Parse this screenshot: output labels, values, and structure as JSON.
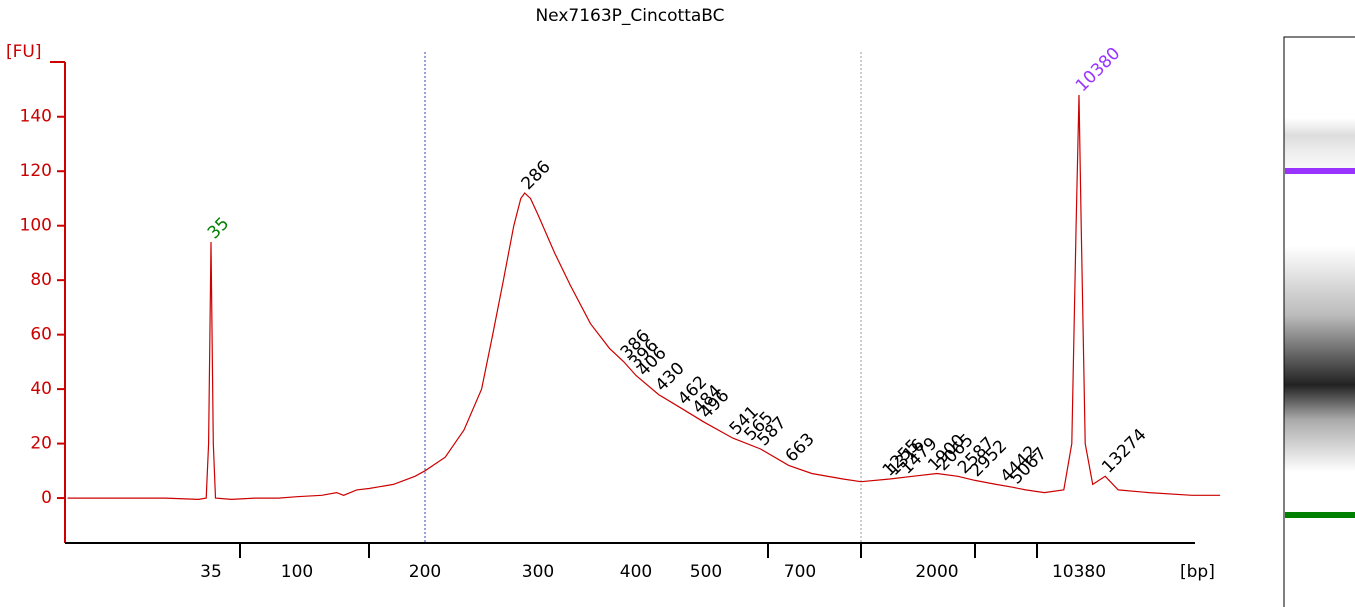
{
  "chart_data": {
    "type": "line",
    "title": "Nex7163P_CincottaBC",
    "ylabel": "[FU]",
    "xlabel": "[bp]",
    "color": "#cc0000",
    "log_x": true,
    "x": [
      6,
      20,
      30,
      33,
      34,
      35,
      36,
      37,
      45,
      60,
      80,
      100,
      115,
      125,
      130,
      140,
      150,
      170,
      190,
      200,
      215,
      230,
      245,
      255,
      265,
      275,
      282,
      286,
      292,
      300,
      315,
      330,
      350,
      370,
      386,
      400,
      430,
      462,
      496,
      541,
      587,
      663,
      750,
      900,
      1000,
      1300,
      1600,
      2000,
      2500,
      3000,
      4000,
      5000,
      6000,
      7500,
      9000,
      9700,
      10100,
      10380,
      10600,
      11000,
      11800,
      13274,
      15000,
      20000,
      30000,
      39000
    ],
    "values": [
      0,
      0,
      -0.5,
      0,
      20,
      94,
      20,
      0,
      -0.5,
      0,
      0,
      0.5,
      1,
      2,
      1,
      3,
      3.5,
      5,
      8,
      10,
      15,
      25,
      40,
      60,
      80,
      100,
      110,
      112,
      110,
      104,
      90,
      78,
      64,
      55,
      50,
      45,
      38,
      33,
      28,
      22,
      18,
      12,
      9,
      7,
      6,
      7,
      8,
      9,
      8,
      6.5,
      5,
      4,
      3,
      2,
      3,
      20,
      100,
      148,
      100,
      20,
      5,
      8,
      3,
      2,
      1,
      1
    ],
    "xlim": [
      6,
      40000
    ],
    "ylim": [
      -16.5,
      159
    ],
    "xticks": [
      35,
      100,
      200,
      300,
      400,
      500,
      700,
      2000,
      10380
    ],
    "xminorticks": [
      50,
      150,
      600,
      1000,
      3000,
      7000
    ],
    "yticks": [
      0,
      20,
      40,
      60,
      80,
      100,
      120,
      140
    ],
    "region_bounds": [
      200,
      1000
    ],
    "peaks": [
      {
        "bp": 35,
        "color": "#008000"
      },
      {
        "bp": 286
      },
      {
        "bp": 386
      },
      {
        "bp": 396
      },
      {
        "bp": 406
      },
      {
        "bp": 430
      },
      {
        "bp": 462
      },
      {
        "bp": 484
      },
      {
        "bp": 496
      },
      {
        "bp": 541
      },
      {
        "bp": 565
      },
      {
        "bp": 587
      },
      {
        "bp": 663
      },
      {
        "bp": 1255
      },
      {
        "bp": 1316
      },
      {
        "bp": 1479
      },
      {
        "bp": 1900
      },
      {
        "bp": 2065
      },
      {
        "bp": 2587
      },
      {
        "bp": 2952
      },
      {
        "bp": 4442
      },
      {
        "bp": 5067
      },
      {
        "bp": 10380,
        "color": "#9933ff"
      },
      {
        "bp": 13274
      }
    ]
  }
}
